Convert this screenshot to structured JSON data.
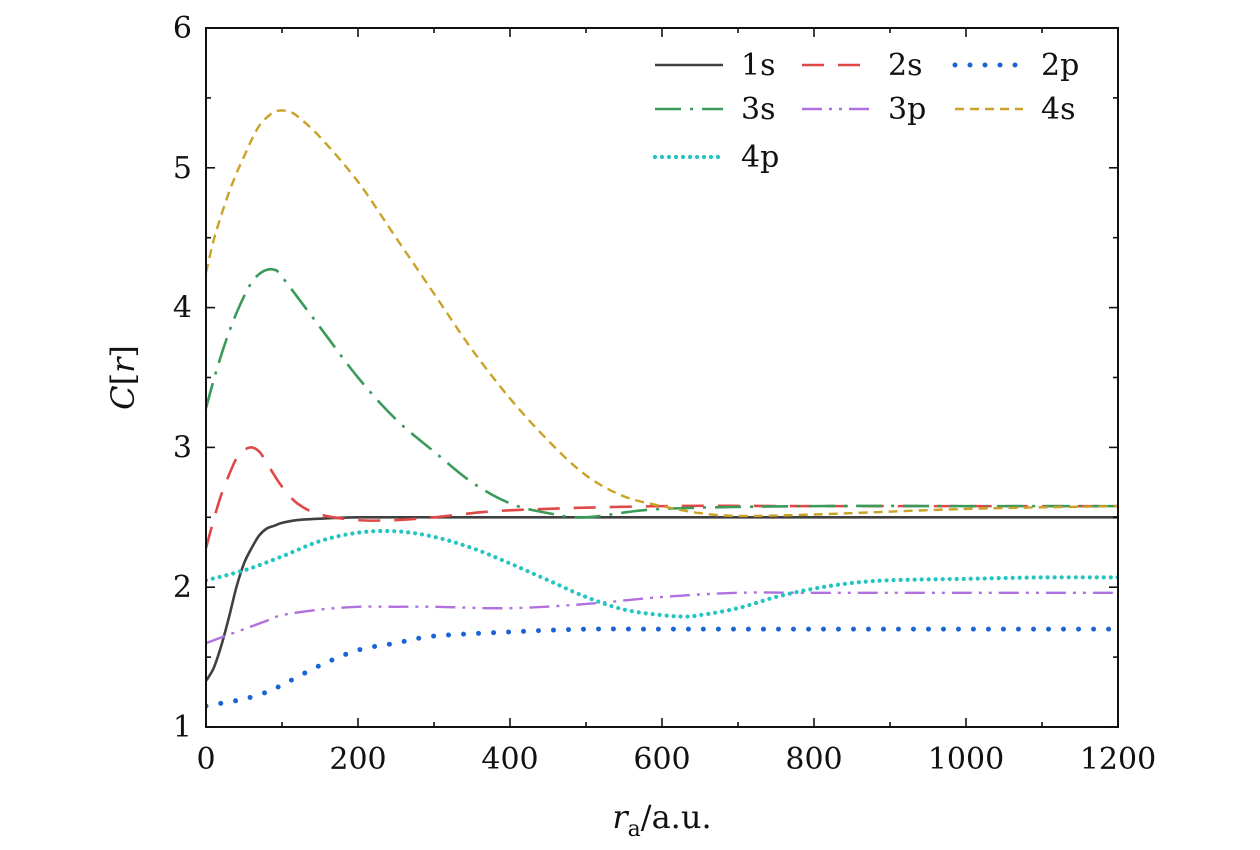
{
  "chart_data": {
    "type": "line",
    "title": "",
    "xlabel": {
      "main": "r",
      "sub": "a",
      "suffix": "/a.u."
    },
    "ylabel": {
      "main": "C",
      "bracket_open": "[",
      "var": "r",
      "bracket_close": "]"
    },
    "xlim": [
      0,
      1200
    ],
    "ylim": [
      1,
      6
    ],
    "xticks": [
      0,
      200,
      400,
      600,
      800,
      1000,
      1200
    ],
    "yticks": [
      1,
      2,
      3,
      4,
      5,
      6
    ],
    "grid": false,
    "legend_position": "top-right",
    "series": [
      {
        "name": "1s",
        "color": "#404040",
        "dash": "solid",
        "x": [
          0,
          10,
          20,
          30,
          40,
          50,
          60,
          70,
          80,
          90,
          100,
          120,
          150,
          200,
          300,
          400,
          600,
          800,
          1000,
          1200
        ],
        "y": [
          1.33,
          1.42,
          1.58,
          1.78,
          2.0,
          2.17,
          2.28,
          2.37,
          2.42,
          2.44,
          2.46,
          2.48,
          2.49,
          2.5,
          2.5,
          2.5,
          2.5,
          2.5,
          2.5,
          2.5
        ]
      },
      {
        "name": "2s",
        "color": "#e04848",
        "dash": "longdash",
        "x": [
          0,
          10,
          20,
          30,
          40,
          50,
          60,
          70,
          80,
          90,
          100,
          120,
          150,
          200,
          250,
          300,
          400,
          600,
          800,
          1000,
          1200
        ],
        "y": [
          2.28,
          2.48,
          2.66,
          2.8,
          2.92,
          2.98,
          3.0,
          2.97,
          2.89,
          2.8,
          2.72,
          2.6,
          2.52,
          2.48,
          2.48,
          2.5,
          2.55,
          2.58,
          2.58,
          2.58,
          2.58
        ]
      },
      {
        "name": "2p",
        "color": "#1a64d6",
        "dash": "dot",
        "x": [
          0,
          20,
          50,
          80,
          100,
          150,
          200,
          250,
          300,
          400,
          500,
          600,
          800,
          1000,
          1200
        ],
        "y": [
          1.15,
          1.17,
          1.2,
          1.25,
          1.3,
          1.44,
          1.55,
          1.6,
          1.65,
          1.68,
          1.7,
          1.7,
          1.7,
          1.7,
          1.7
        ]
      },
      {
        "name": "3s",
        "color": "#3a9a5a",
        "dash": "dashdot",
        "x": [
          0,
          10,
          20,
          30,
          40,
          50,
          60,
          70,
          80,
          90,
          100,
          150,
          200,
          250,
          300,
          350,
          400,
          450,
          500,
          600,
          800,
          1000,
          1200
        ],
        "y": [
          3.28,
          3.48,
          3.66,
          3.82,
          3.96,
          4.08,
          4.18,
          4.24,
          4.27,
          4.27,
          4.22,
          3.86,
          3.5,
          3.2,
          2.97,
          2.75,
          2.6,
          2.53,
          2.5,
          2.56,
          2.58,
          2.58,
          2.58
        ]
      },
      {
        "name": "3p",
        "color": "#b070e0",
        "dash": "dashdotdot",
        "x": [
          0,
          20,
          50,
          80,
          100,
          150,
          200,
          250,
          300,
          400,
          500,
          600,
          700,
          800,
          1000,
          1200
        ],
        "y": [
          1.6,
          1.64,
          1.7,
          1.76,
          1.8,
          1.84,
          1.86,
          1.86,
          1.86,
          1.85,
          1.88,
          1.93,
          1.96,
          1.96,
          1.96,
          1.96
        ]
      },
      {
        "name": "4s",
        "color": "#c9a227",
        "dash": "shortdash",
        "x": [
          0,
          10,
          20,
          30,
          40,
          50,
          60,
          70,
          80,
          90,
          100,
          110,
          120,
          150,
          200,
          250,
          300,
          350,
          400,
          450,
          500,
          550,
          600,
          650,
          700,
          800,
          1000,
          1200
        ],
        "y": [
          4.25,
          4.48,
          4.66,
          4.82,
          4.96,
          5.08,
          5.2,
          5.3,
          5.36,
          5.4,
          5.41,
          5.4,
          5.37,
          5.22,
          4.9,
          4.5,
          4.1,
          3.7,
          3.35,
          3.05,
          2.8,
          2.65,
          2.58,
          2.53,
          2.51,
          2.52,
          2.56,
          2.58
        ]
      },
      {
        "name": "4p",
        "color": "#22c4c4",
        "dash": "densedot",
        "x": [
          0,
          50,
          100,
          150,
          200,
          250,
          300,
          350,
          400,
          450,
          500,
          550,
          600,
          630,
          650,
          700,
          750,
          800,
          850,
          900,
          1000,
          1100,
          1200
        ],
        "y": [
          2.05,
          2.12,
          2.22,
          2.33,
          2.39,
          2.4,
          2.36,
          2.28,
          2.17,
          2.05,
          1.93,
          1.84,
          1.8,
          1.79,
          1.8,
          1.85,
          1.93,
          1.99,
          2.03,
          2.05,
          2.06,
          2.07,
          2.07
        ]
      }
    ]
  }
}
